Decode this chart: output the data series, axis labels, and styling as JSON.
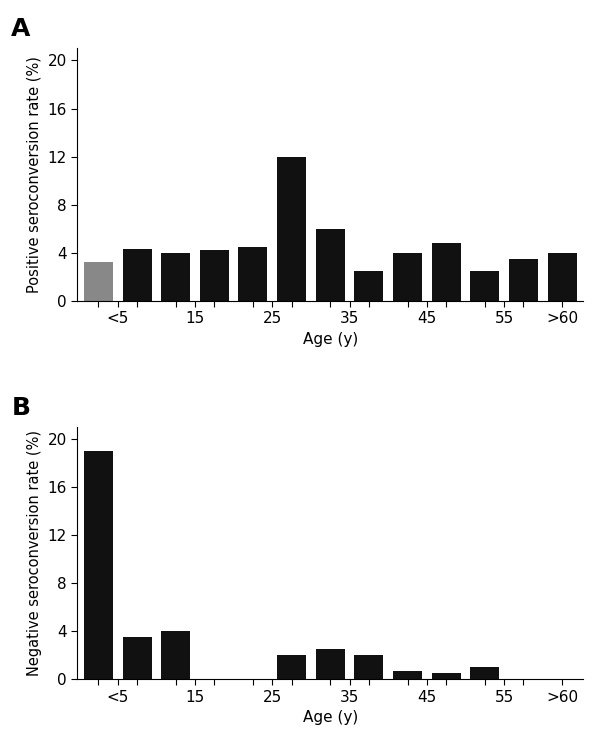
{
  "panel_A": {
    "title": "A",
    "ylabel": "Positive seroconversion rate (%)",
    "xlabel": "Age (y)",
    "values": [
      3.2,
      4.3,
      4.0,
      4.2,
      4.5,
      12.0,
      6.0,
      2.5,
      4.0,
      4.8,
      2.5,
      3.5,
      4.0
    ],
    "bar_color": "#111111",
    "first_bar_color": "#888888",
    "ylim": [
      0,
      21
    ],
    "yticks": [
      0,
      4,
      8,
      12,
      16,
      20
    ],
    "major_tick_positions": [
      0.5,
      2.5,
      4.5,
      6.5,
      8.5,
      10.5,
      12.0
    ],
    "major_tick_labels": [
      "<5",
      "15",
      "25",
      "35",
      "45",
      "55",
      ">60"
    ]
  },
  "panel_B": {
    "title": "B",
    "ylabel": "Negative seroconversion rate (%)",
    "xlabel": "Age (y)",
    "values": [
      19.0,
      3.5,
      4.0,
      0.0,
      0.0,
      2.0,
      2.5,
      2.0,
      0.7,
      0.5,
      1.0,
      0.0,
      0.0
    ],
    "bar_color": "#111111",
    "ylim": [
      0,
      21
    ],
    "yticks": [
      0,
      4,
      8,
      12,
      16,
      20
    ],
    "major_tick_positions": [
      0.5,
      2.5,
      4.5,
      6.5,
      8.5,
      10.5,
      12.0
    ],
    "major_tick_labels": [
      "<5",
      "15",
      "25",
      "35",
      "45",
      "55",
      ">60"
    ]
  },
  "background_color": "#ffffff",
  "fig_width": 6.0,
  "fig_height": 7.42,
  "dpi": 100
}
